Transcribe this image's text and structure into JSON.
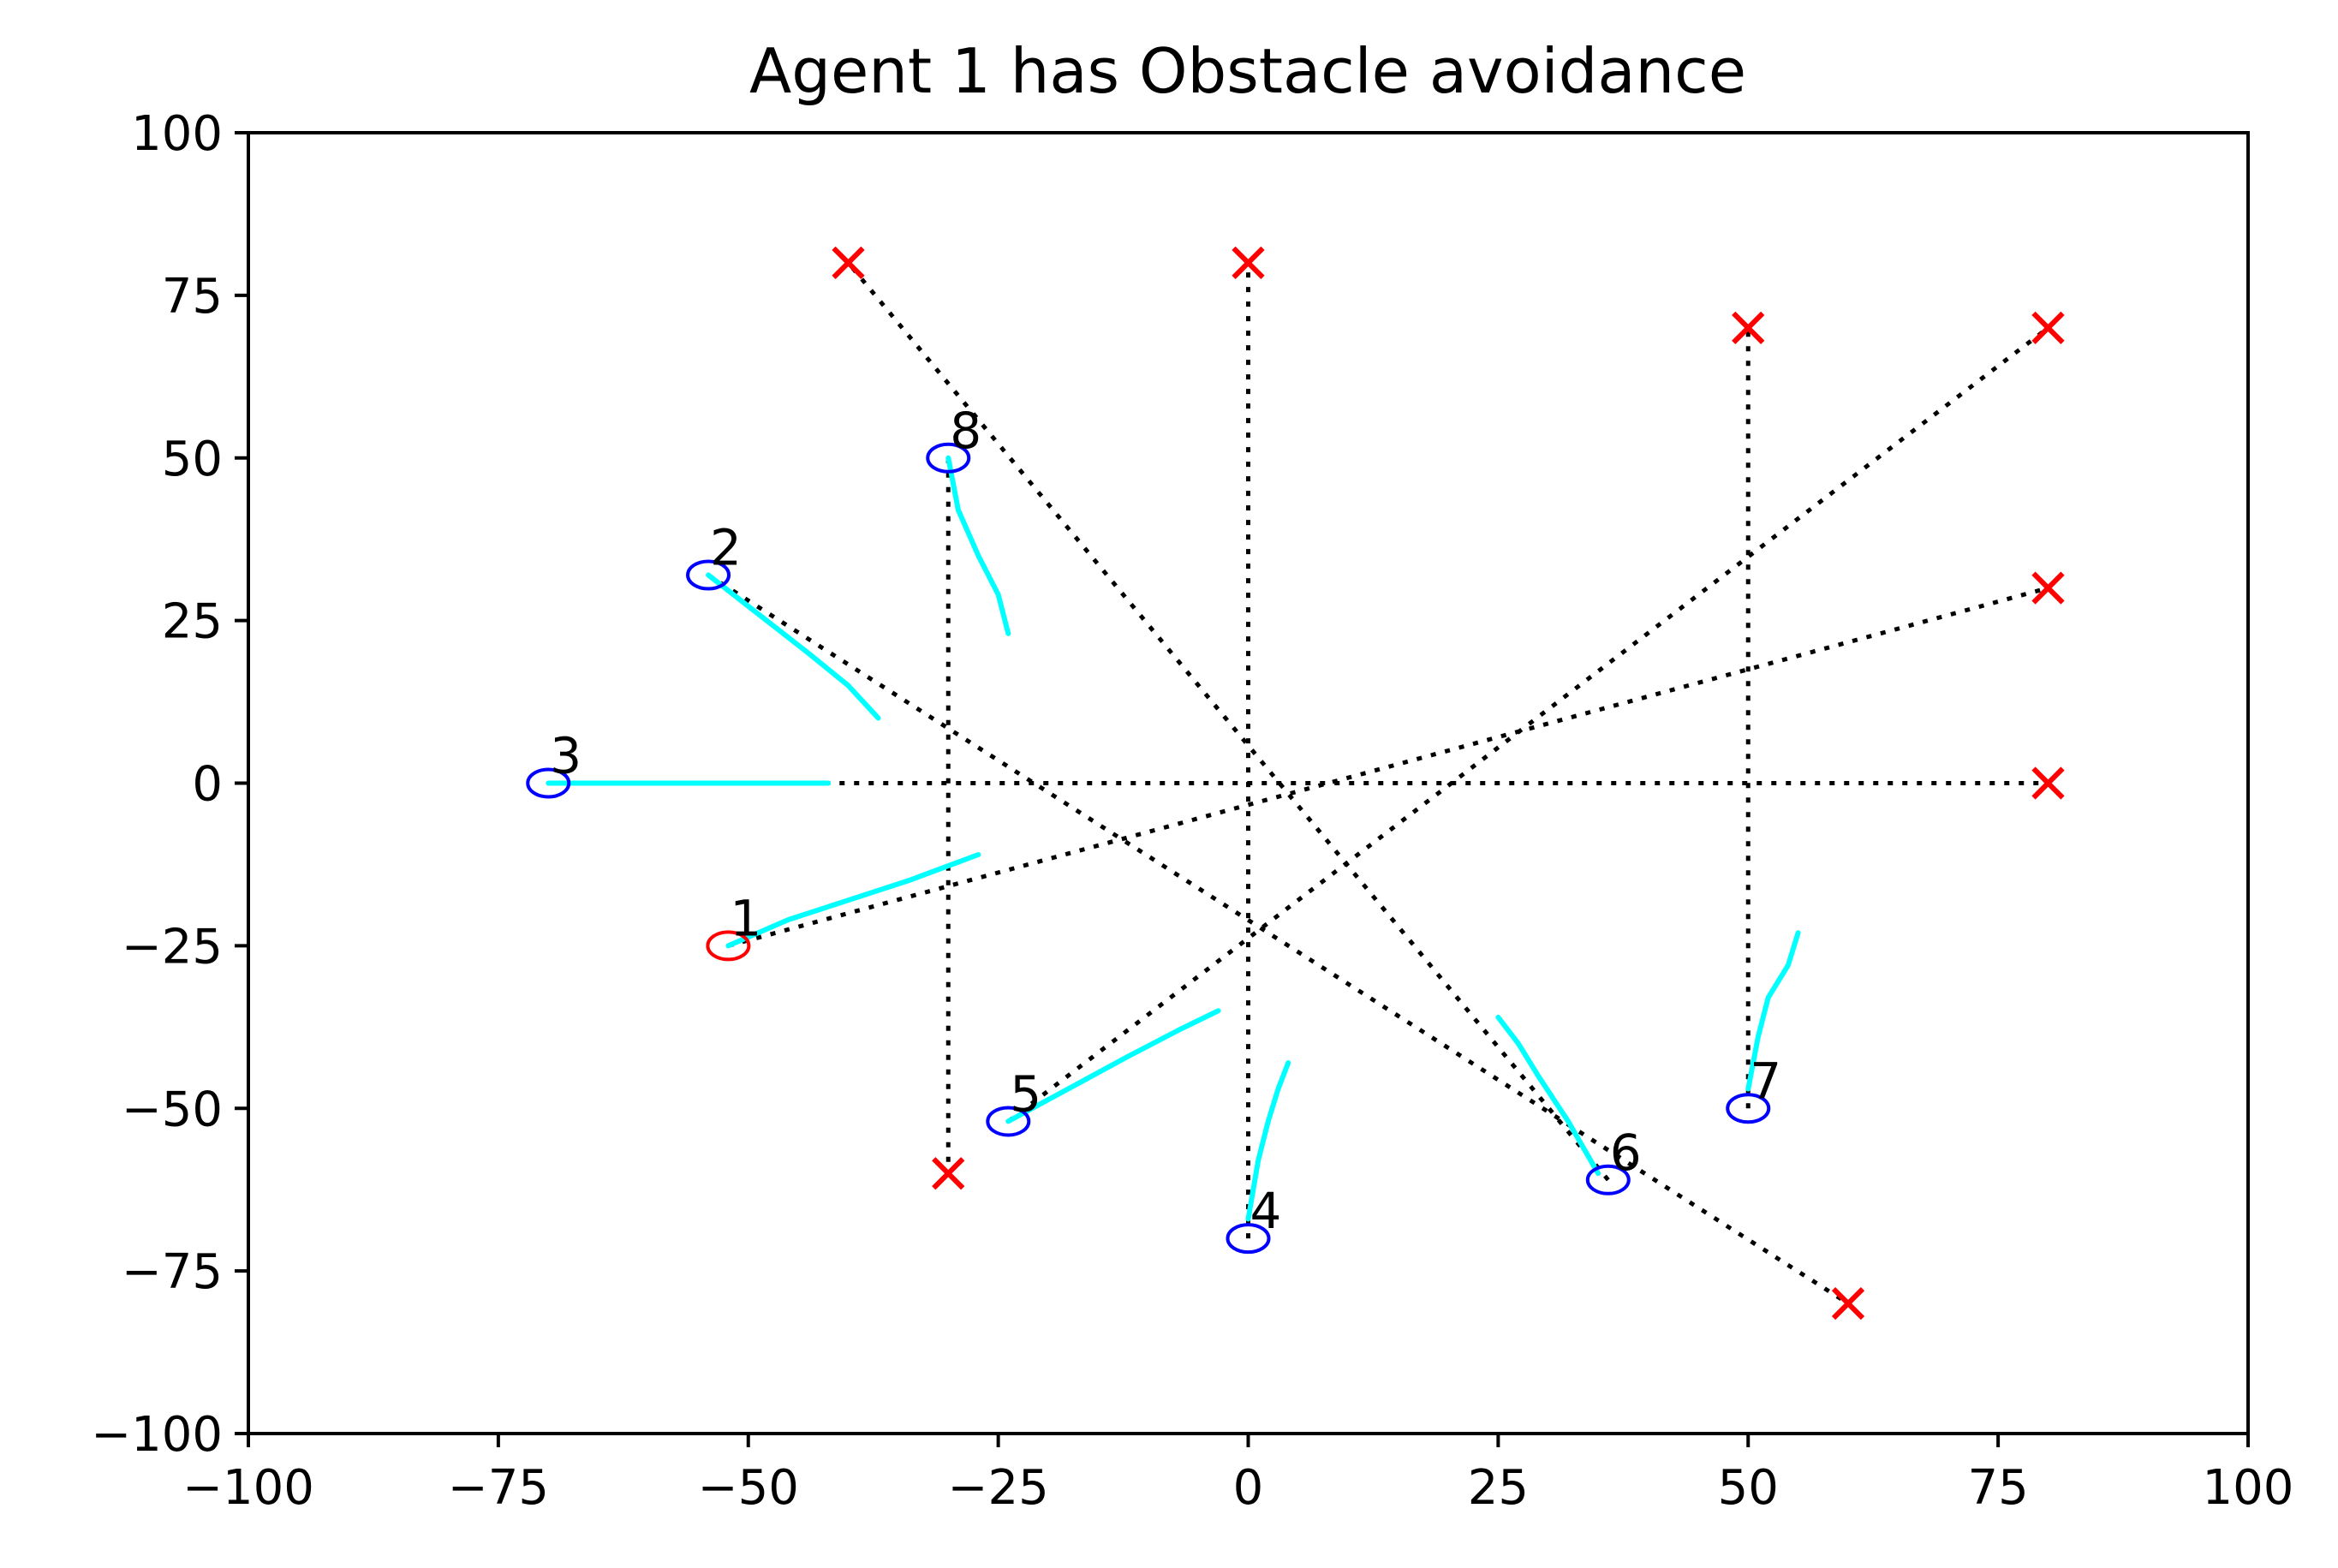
{
  "chart_data": {
    "type": "scatter",
    "title": "Agent 1 has Obstacle avoidance",
    "xlabel": "",
    "ylabel": "",
    "xlim": [
      -100,
      100
    ],
    "ylim": [
      -100,
      100
    ],
    "xticks": [
      -100,
      -75,
      -50,
      -25,
      0,
      25,
      50,
      75,
      100
    ],
    "yticks": [
      -100,
      -75,
      -50,
      -25,
      0,
      25,
      50,
      75,
      100
    ],
    "xtick_labels": [
      "−100",
      "−75",
      "−50",
      "−25",
      "0",
      "25",
      "50",
      "75",
      "100"
    ],
    "ytick_labels": [
      "−100",
      "−75",
      "−50",
      "−25",
      "0",
      "25",
      "50",
      "75",
      "100"
    ],
    "grid": false,
    "colors": {
      "agent_default": "#0000ff",
      "agent_highlight": "#ff0000",
      "goal": "#ff0000",
      "trajectory": "#00ffff",
      "planned_path": "#000000"
    },
    "agents": [
      {
        "label": "1",
        "position": [
          -52,
          -25
        ],
        "goal": [
          80,
          30
        ],
        "trail": [
          [
            -52,
            -25
          ],
          [
            -46,
            -21
          ],
          [
            -40,
            -18
          ],
          [
            -34,
            -15
          ],
          [
            -27,
            -11
          ]
        ],
        "highlight": true
      },
      {
        "label": "2",
        "position": [
          -54,
          32
        ],
        "goal": [
          60,
          -80
        ],
        "trail": [
          [
            -54,
            32
          ],
          [
            -49,
            26
          ],
          [
            -44,
            20
          ],
          [
            -40,
            15
          ],
          [
            -37,
            10
          ]
        ],
        "highlight": false
      },
      {
        "label": "3",
        "position": [
          -70,
          0
        ],
        "goal": [
          80,
          0
        ],
        "trail": [
          [
            -70,
            0
          ],
          [
            -62,
            0
          ],
          [
            -54,
            0
          ],
          [
            -48,
            0
          ],
          [
            -42,
            0
          ]
        ],
        "highlight": false
      },
      {
        "label": "4",
        "position": [
          0,
          -70
        ],
        "goal": [
          0,
          80
        ],
        "trail": [
          [
            0,
            -67
          ],
          [
            1,
            -58
          ],
          [
            2,
            -52
          ],
          [
            3,
            -47
          ],
          [
            4,
            -43
          ]
        ],
        "highlight": false
      },
      {
        "label": "5",
        "position": [
          -24,
          -52
        ],
        "goal": [
          80,
          70
        ],
        "trail": [
          [
            -24,
            -52
          ],
          [
            -18,
            -47
          ],
          [
            -12,
            -42
          ],
          [
            -7,
            -38
          ],
          [
            -3,
            -35
          ]
        ],
        "highlight": false
      },
      {
        "label": "6",
        "position": [
          36,
          -61
        ],
        "goal": [
          -40,
          80
        ],
        "trail": [
          [
            35,
            -60
          ],
          [
            32,
            -52
          ],
          [
            29,
            -45
          ],
          [
            27,
            -40
          ],
          [
            25,
            -36
          ]
        ],
        "highlight": false
      },
      {
        "label": "7",
        "position": [
          50,
          -50
        ],
        "goal": [
          50,
          70
        ],
        "trail": [
          [
            50,
            -47
          ],
          [
            51,
            -39
          ],
          [
            52,
            -33
          ],
          [
            54,
            -28
          ],
          [
            55,
            -23
          ]
        ],
        "highlight": false
      },
      {
        "label": "8",
        "position": [
          -30,
          50
        ],
        "goal": [
          -30,
          -60
        ],
        "trail": [
          [
            -30,
            50
          ],
          [
            -29,
            42
          ],
          [
            -27,
            35
          ],
          [
            -25,
            29
          ],
          [
            -24,
            23
          ]
        ],
        "highlight": false
      }
    ]
  }
}
